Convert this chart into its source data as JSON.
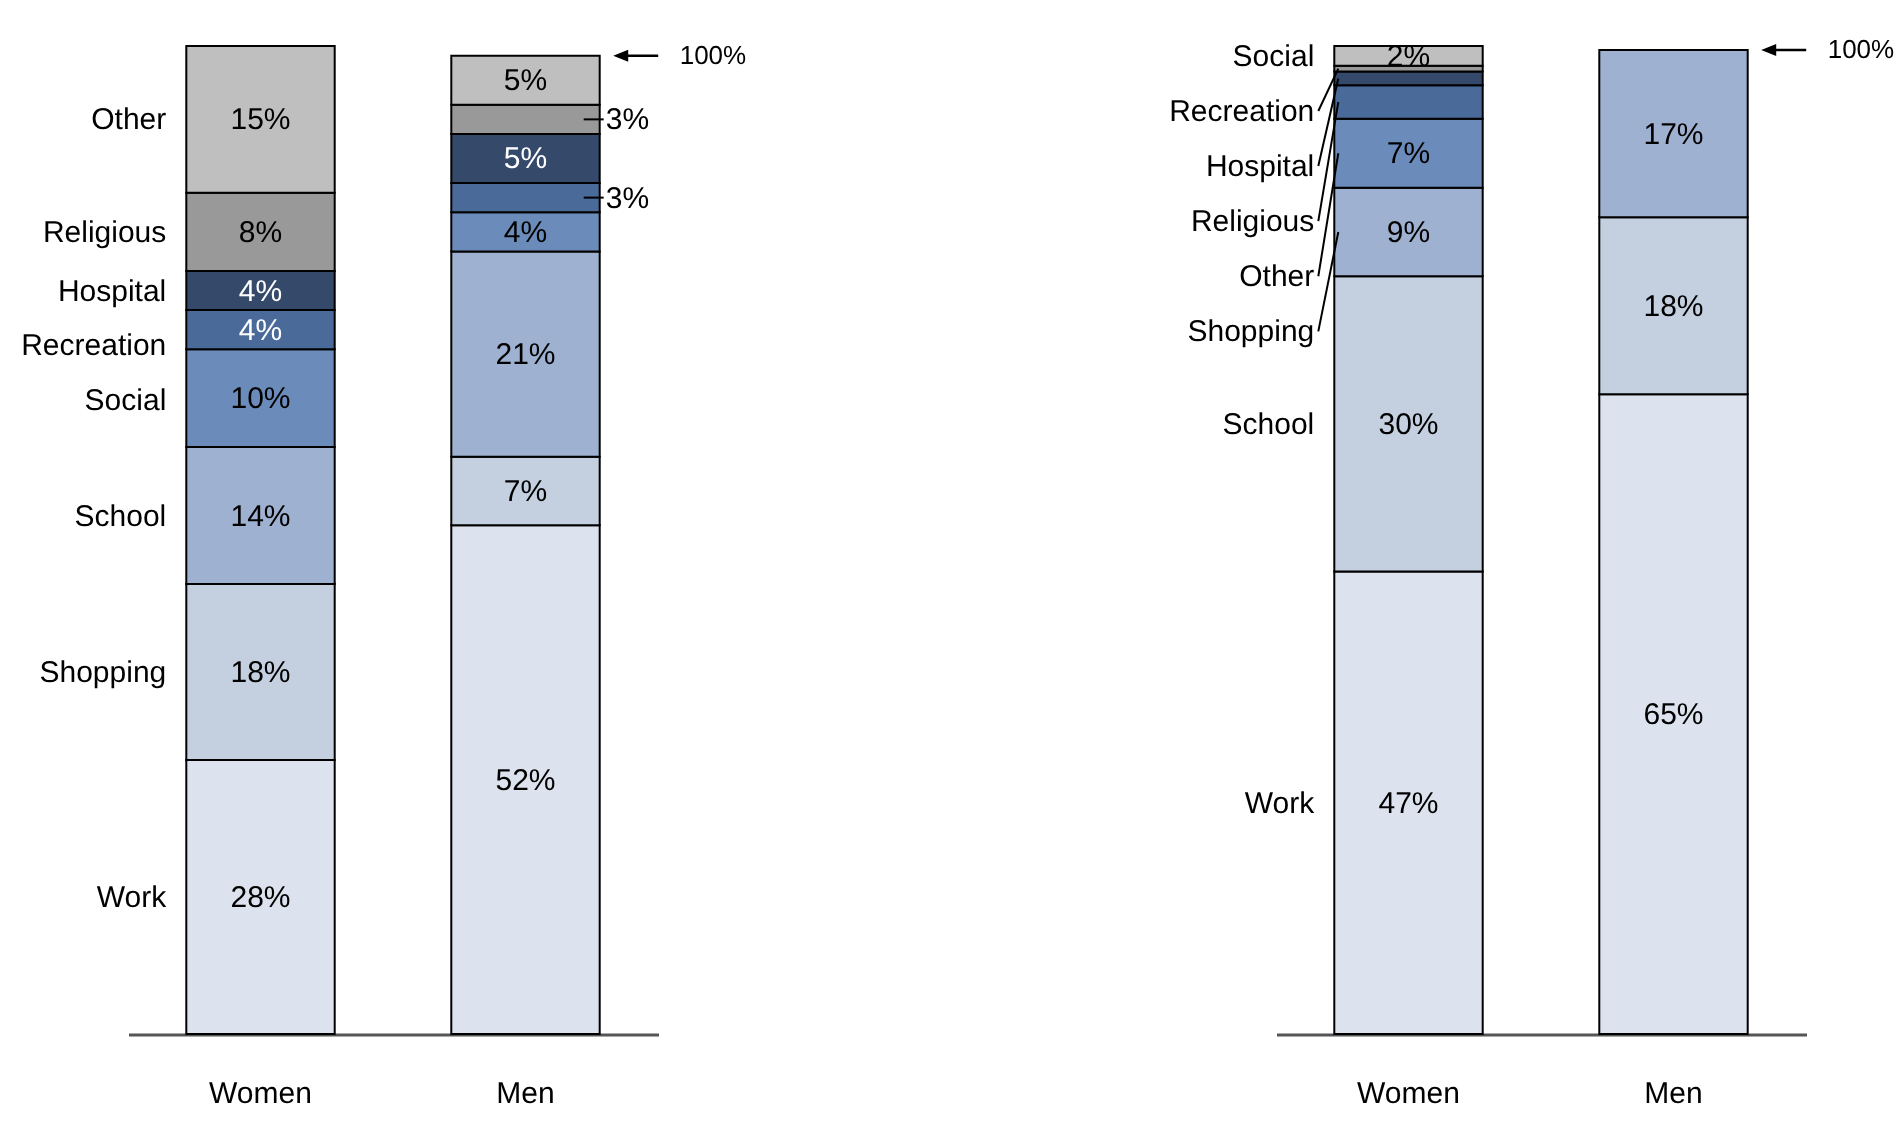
{
  "chart_data": [
    {
      "type": "bar",
      "stacked": true,
      "categories": [
        "Women",
        "Men"
      ],
      "annotations": [
        "100%"
      ],
      "series": [
        {
          "name": "Work",
          "color": "#dde3ee",
          "values": [
            28,
            52
          ],
          "value_labels": [
            "28%",
            "52%"
          ]
        },
        {
          "name": "Shopping",
          "color": "#c4cfe0",
          "values": [
            18,
            7
          ],
          "value_labels": [
            "18%",
            "7%"
          ]
        },
        {
          "name": "School",
          "color": "#9fb1d0",
          "values": [
            14,
            21
          ],
          "value_labels": [
            "14%",
            "21%"
          ]
        },
        {
          "name": "Social",
          "color": "#6b8cbb",
          "values": [
            10,
            4
          ],
          "value_labels": [
            "10%",
            "4%"
          ]
        },
        {
          "name": "Recreation",
          "color": "#4a6a9a",
          "values": [
            4,
            3
          ],
          "value_labels": [
            "4%",
            "3%"
          ]
        },
        {
          "name": "Hospital",
          "color": "#35496b",
          "values": [
            4,
            5
          ],
          "value_labels": [
            "4%",
            "5%"
          ]
        },
        {
          "name": "Religious",
          "color": "#999999",
          "values": [
            8,
            3
          ],
          "value_labels": [
            "8%",
            "3%"
          ]
        },
        {
          "name": "Other",
          "color": "#bfbfbf",
          "values": [
            15,
            5
          ],
          "value_labels": [
            "15%",
            "5%"
          ]
        }
      ]
    },
    {
      "type": "bar",
      "stacked": true,
      "categories": [
        "Women",
        "Men"
      ],
      "annotations": [
        "100%"
      ],
      "series": [
        {
          "name": "Work",
          "color": "#dde3ee",
          "values": [
            47,
            65
          ],
          "value_labels": [
            "47%",
            "65%"
          ]
        },
        {
          "name": "School",
          "color": "#c4cfe0",
          "values": [
            30,
            18
          ],
          "value_labels": [
            "30%",
            "18%"
          ]
        },
        {
          "name": "Shopping",
          "color": "#9fb1d0",
          "values": [
            9,
            17
          ],
          "value_labels": [
            "9%",
            "17%"
          ]
        },
        {
          "name": "Other",
          "color": "#6b8cbb",
          "values": [
            7,
            null
          ],
          "value_labels": [
            "7%",
            null
          ]
        },
        {
          "name": "Religious",
          "color": "#4a6a9a",
          "values": [
            3.4,
            null
          ],
          "value_labels": [
            null,
            null
          ]
        },
        {
          "name": "Hospital",
          "color": "#35496b",
          "values": [
            1.4,
            null
          ],
          "value_labels": [
            null,
            null
          ]
        },
        {
          "name": "Recreation",
          "color": "#999999",
          "values": [
            0.6,
            null
          ],
          "value_labels": [
            null,
            null
          ]
        },
        {
          "name": "Social",
          "color": "#bfbfbf",
          "values": [
            2,
            null
          ],
          "value_labels": [
            "2%",
            null
          ]
        }
      ]
    }
  ]
}
